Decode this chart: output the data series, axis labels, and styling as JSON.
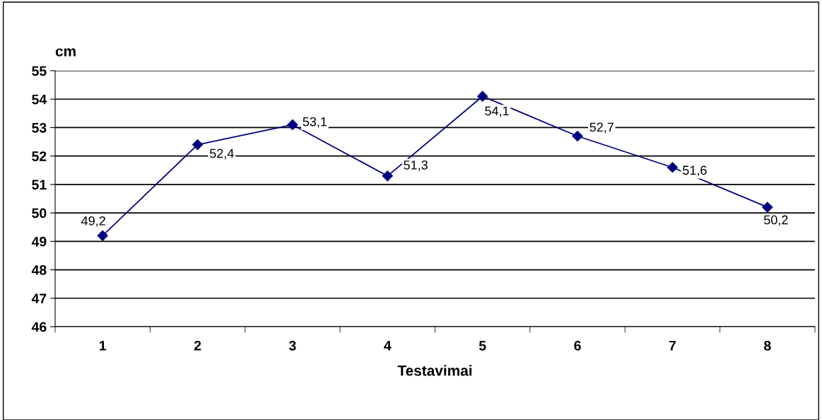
{
  "chart_data": {
    "type": "line",
    "ylabel": "cm",
    "xlabel": "Testavimai",
    "categories": [
      "1",
      "2",
      "3",
      "4",
      "5",
      "6",
      "7",
      "8"
    ],
    "series": [
      {
        "color": "#000080",
        "values": [
          49.2,
          52.4,
          53.1,
          51.3,
          54.1,
          52.7,
          51.6,
          50.2
        ],
        "value_labels": [
          "49,2",
          "52,4",
          "53,1",
          "51,3",
          "54,1",
          "52,7",
          "51,6",
          "50,2"
        ]
      }
    ],
    "ylim": [
      46,
      55
    ],
    "yticks": [
      46,
      47,
      48,
      49,
      50,
      51,
      52,
      53,
      54,
      55
    ],
    "grid": "y",
    "marker": "diamond",
    "line_style": "solid",
    "legend": false
  }
}
